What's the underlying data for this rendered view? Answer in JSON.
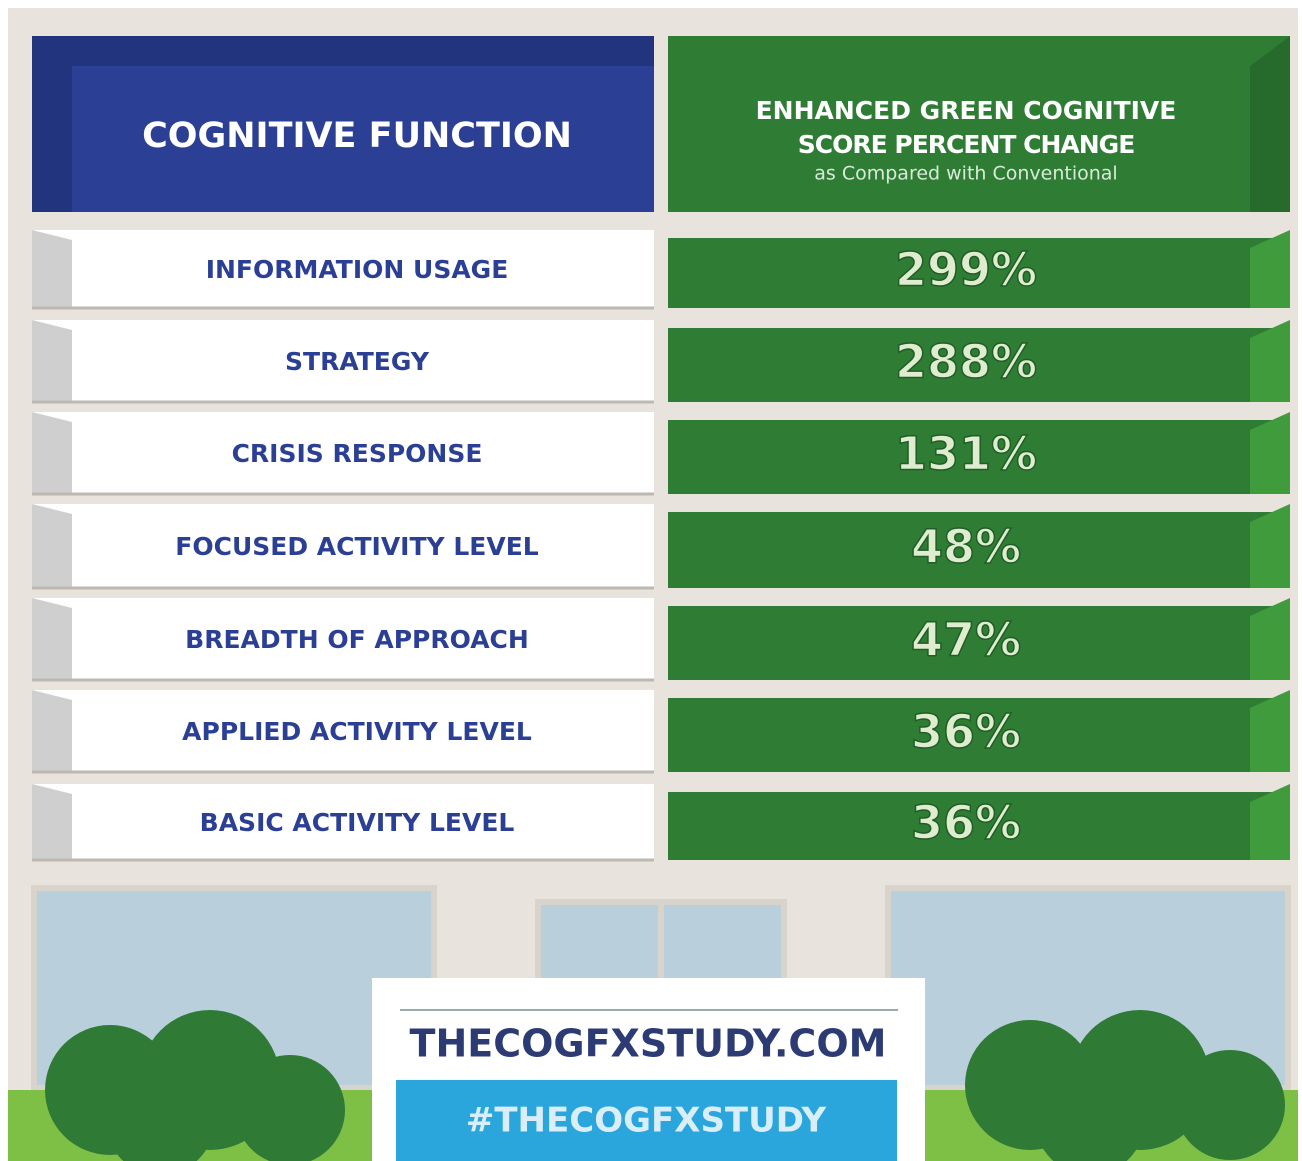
{
  "header": {
    "left": "COGNITIVE FUNCTION",
    "right": [
      "ENHANCED GREEN COGNITIVE",
      "SCORE PERCENT CHANGE",
      "as Compared with Conventional"
    ]
  },
  "table": {
    "rows": [
      [
        "INFORMATION USAGE",
        "299%"
      ],
      [
        "STRATEGY",
        "288%"
      ],
      [
        "CRISIS RESPONSE",
        "131%"
      ],
      [
        "FOCUSED ACTIVITY LEVEL",
        "48%"
      ],
      [
        "BREADTH OF APPROACH",
        "47%"
      ],
      [
        "APPLIED ACTIVITY LEVEL",
        "36%"
      ],
      [
        "BASIC ACTIVITY LEVEL",
        "36%"
      ]
    ]
  },
  "footer": {
    "url": "THECOGFXSTUDY.COM",
    "hashtag": "#THECOGFXSTUDY"
  }
}
